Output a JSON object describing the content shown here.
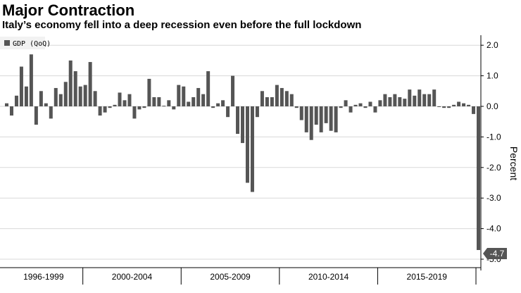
{
  "header": {
    "title": "Major Contraction",
    "subtitle": "Italy’s economy fell into a deep recession even before the full lockdown"
  },
  "colors": {
    "bar": "#555555",
    "grid": "#d8d8d8",
    "axis": "#000000",
    "callout_bg": "#555555"
  },
  "chart_data": {
    "type": "bar",
    "title": "Major Contraction",
    "subtitle": "Italy’s economy fell into a deep recession even before the full lockdown",
    "ylabel": "Percent",
    "xlabel": "",
    "ylim": [
      -5.2,
      2.3
    ],
    "yticks": [
      2.0,
      1.0,
      0.0,
      -1.0,
      -2.0,
      -3.0,
      -4.0,
      -5.0
    ],
    "ytick_labels": [
      "2.0",
      "1.0",
      "0.0",
      "-1.0",
      "-2.0",
      "-3.0",
      "-4.0",
      "-5.0"
    ],
    "y_axis_side": "right",
    "grid": true,
    "legend": {
      "position": "top-left",
      "entries": [
        "GDP (QoQ)"
      ]
    },
    "period_labels": [
      "1996-1999",
      "2000-2004",
      "2005-2009",
      "2010-2014",
      "2015-2019"
    ],
    "period_quarters": [
      [
        0,
        15
      ],
      [
        16,
        35
      ],
      [
        36,
        55
      ],
      [
        56,
        75
      ],
      [
        76,
        95
      ]
    ],
    "series": [
      {
        "name": "GDP (QoQ)",
        "values": [
          0.1,
          -0.3,
          0.35,
          1.3,
          0.65,
          1.7,
          -0.6,
          0.5,
          0.1,
          -0.4,
          0.6,
          0.4,
          0.8,
          1.5,
          1.15,
          0.65,
          0.7,
          1.45,
          0.5,
          -0.3,
          -0.2,
          -0.05,
          0.05,
          0.45,
          0.2,
          0.4,
          -0.4,
          -0.1,
          -0.05,
          0.9,
          0.3,
          0.3,
          0.02,
          0.2,
          -0.1,
          0.7,
          0.65,
          0.15,
          0.3,
          0.6,
          0.4,
          1.15,
          -0.05,
          0.1,
          0.2,
          -0.35,
          1.0,
          -0.9,
          -1.2,
          -2.5,
          -2.8,
          -0.35,
          0.5,
          0.3,
          0.3,
          0.7,
          0.6,
          0.5,
          0.4,
          -0.05,
          -0.45,
          -0.85,
          -1.1,
          -0.6,
          -0.85,
          -0.55,
          -0.8,
          -0.85,
          -0.05,
          0.2,
          -0.2,
          0.05,
          0.1,
          -0.05,
          0.15,
          -0.2,
          0.2,
          0.4,
          0.3,
          0.4,
          0.3,
          0.25,
          0.55,
          0.35,
          0.55,
          0.4,
          0.4,
          0.55,
          -0.02,
          -0.05,
          -0.05,
          0.05,
          0.15,
          0.1,
          0.05,
          -0.25,
          -4.7
        ]
      }
    ],
    "annotations": [
      {
        "index": 96,
        "value": -4.7,
        "text": "-4.7"
      }
    ]
  }
}
